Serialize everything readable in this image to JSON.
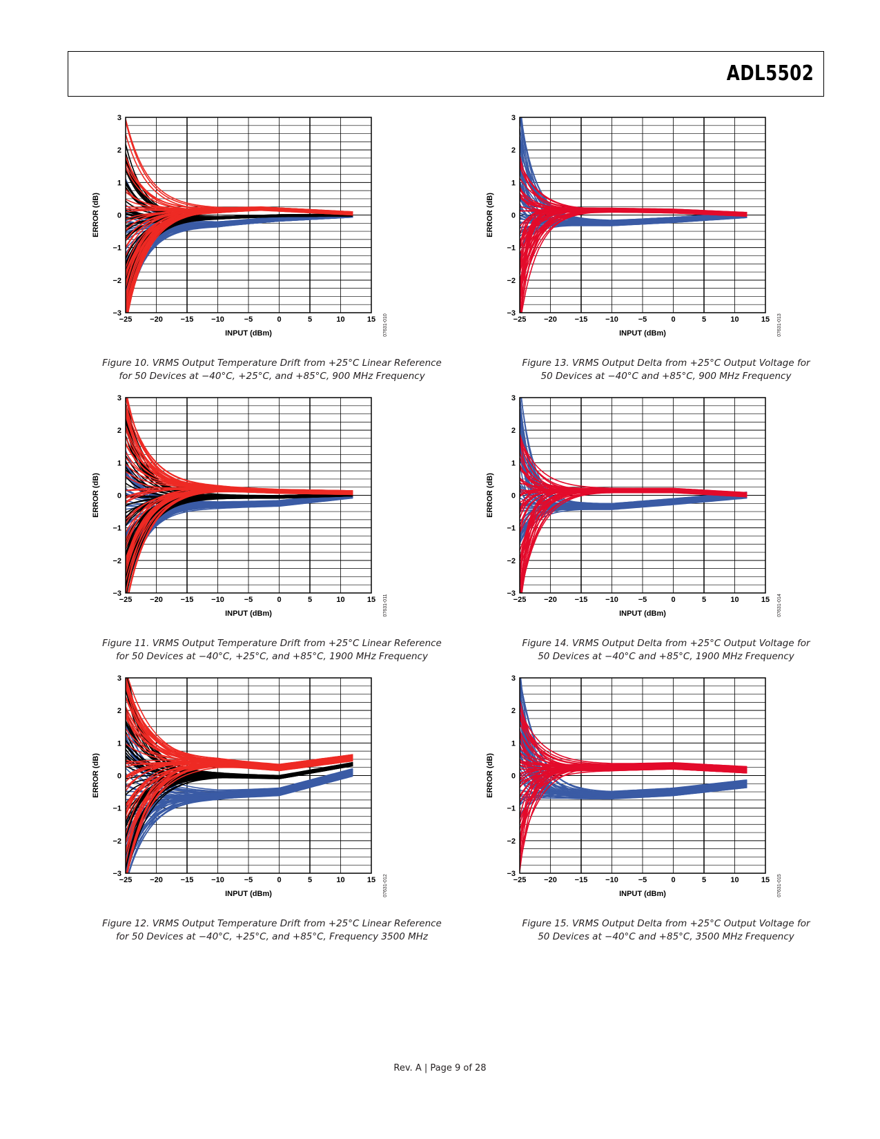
{
  "header": {
    "part_number": "ADL5502"
  },
  "footer": {
    "text": "Rev. A | Page 9 of 28"
  },
  "colors": {
    "minus40": "#3a5ba5",
    "plus25": "#000000",
    "plus85_left": "#ee2a24",
    "plus85_right": "#e30b2b"
  },
  "figures": [
    {
      "caption_line1": "Figure 10. VRMS Output Temperature Drift from +25°C Linear Reference",
      "caption_line2": "for 50 Devices at −40°C, +25°C, and +85°C, 900 MHz Frequency",
      "code": "07631-010",
      "chart_data": {
        "type": "line",
        "xlabel": "INPUT (dBm)",
        "ylabel": "ERROR (dB)",
        "xlim": [
          -25,
          15
        ],
        "ylim": [
          -3,
          3
        ],
        "xticks": [
          "−25",
          "−20",
          "−15",
          "−10",
          "−5",
          "0",
          "5",
          "10",
          "15"
        ],
        "yticks": [
          "−3",
          "−2",
          "−1",
          "0",
          "1",
          "2",
          "3"
        ],
        "series": [
          {
            "temp": "−40°C",
            "color": "#3a5ba5",
            "settle_x": [
              -15,
              -14
            ],
            "tail_x": [
              -10,
              0,
              12
            ],
            "tail_y": [
              -0.28,
              -0.12,
              0.0
            ],
            "start_range": [
              -3.4,
              1.2
            ],
            "band": 0.07
          },
          {
            "temp": "+25°C",
            "color": "#000000",
            "settle_x": [
              -16,
              -14
            ],
            "tail_x": [
              -10,
              0,
              12
            ],
            "tail_y": [
              -0.08,
              -0.02,
              0.0
            ],
            "start_range": [
              -3.2,
              2.4
            ],
            "band": 0.03
          },
          {
            "temp": "+85°C",
            "color": "#ee2a24",
            "settle_x": [
              -15,
              -13
            ],
            "tail_x": [
              -10,
              -3,
              12
            ],
            "tail_y": [
              0.15,
              0.2,
              0.05
            ],
            "start_range": [
              -3.5,
              3.0
            ],
            "band": 0.05
          }
        ]
      }
    },
    {
      "caption_line1": "Figure 11. VRMS Output Temperature Drift from +25°C Linear Reference",
      "caption_line2": "for 50 Devices at −40°C, +25°C, and +85°C, 1900 MHz Frequency",
      "code": "07631-011",
      "chart_data": {
        "type": "line",
        "xlabel": "INPUT (dBm)",
        "ylabel": "ERROR (dB)",
        "xlim": [
          -25,
          15
        ],
        "ylim": [
          -3,
          3
        ],
        "xticks": [
          "−25",
          "−20",
          "−15",
          "−10",
          "−5",
          "0",
          "5",
          "10",
          "15"
        ],
        "yticks": [
          "−3",
          "−2",
          "−1",
          "0",
          "1",
          "2",
          "3"
        ],
        "series": [
          {
            "temp": "−40°C",
            "color": "#3a5ba5",
            "settle_x": [
              -15,
              -13
            ],
            "tail_x": [
              -10,
              0,
              12
            ],
            "tail_y": [
              -0.3,
              -0.25,
              0.0
            ],
            "start_range": [
              -3.4,
              1.5
            ],
            "band": 0.09
          },
          {
            "temp": "+25°C",
            "color": "#000000",
            "settle_x": [
              -16,
              -13
            ],
            "tail_x": [
              -10,
              0,
              12
            ],
            "tail_y": [
              -0.05,
              -0.05,
              0.02
            ],
            "start_range": [
              -3.3,
              3.2
            ],
            "band": 0.04
          },
          {
            "temp": "+85°C",
            "color": "#ee2a24",
            "settle_x": [
              -15,
              -12
            ],
            "tail_x": [
              -10,
              0,
              12
            ],
            "tail_y": [
              0.2,
              0.12,
              0.08
            ],
            "start_range": [
              -3.5,
              3.3
            ],
            "band": 0.06
          }
        ]
      }
    },
    {
      "caption_line1": "Figure 12. VRMS Output Temperature Drift from +25°C Linear Reference",
      "caption_line2": "for 50 Devices at −40°C, +25°C, and +85°C, Frequency 3500 MHz",
      "code": "07631-012",
      "chart_data": {
        "type": "line",
        "xlabel": "INPUT (dBm)",
        "ylabel": "ERROR (dB)",
        "xlim": [
          -25,
          15
        ],
        "ylim": [
          -3,
          3
        ],
        "xticks": [
          "−25",
          "−20",
          "−15",
          "−10",
          "−5",
          "0",
          "5",
          "10",
          "15"
        ],
        "yticks": [
          "−3",
          "−2",
          "−1",
          "0",
          "1",
          "2",
          "3"
        ],
        "series": [
          {
            "temp": "−40°C",
            "color": "#3a5ba5",
            "settle_x": [
              -15,
              -12
            ],
            "tail_x": [
              -10,
              0,
              12
            ],
            "tail_y": [
              -0.6,
              -0.5,
              0.1
            ],
            "start_range": [
              -3.4,
              2.0
            ],
            "band": 0.12
          },
          {
            "temp": "+25°C",
            "color": "#000000",
            "settle_x": [
              -16,
              -12
            ],
            "tail_x": [
              -10,
              0,
              12
            ],
            "tail_y": [
              0.0,
              -0.05,
              0.35
            ],
            "start_range": [
              -3.4,
              3.5
            ],
            "band": 0.05
          },
          {
            "temp": "+85°C",
            "color": "#ee2a24",
            "settle_x": [
              -15,
              -11
            ],
            "tail_x": [
              -10,
              0,
              12
            ],
            "tail_y": [
              0.4,
              0.25,
              0.55
            ],
            "start_range": [
              -3.5,
              3.5
            ],
            "band": 0.1
          }
        ]
      }
    },
    {
      "caption_line1": "Figure 13. VRMS Output Delta from +25°C Output Voltage for",
      "caption_line2": "50 Devices at −40°C and +85°C, 900 MHz Frequency",
      "code": "07631-013",
      "chart_data": {
        "type": "line",
        "xlabel": "INPUT (dBm)",
        "ylabel": "ERROR (dB)",
        "xlim": [
          -25,
          15
        ],
        "ylim": [
          -3,
          3
        ],
        "xticks": [
          "−25",
          "−20",
          "−15",
          "−10",
          "−5",
          "0",
          "5",
          "10",
          "15"
        ],
        "yticks": [
          "−3",
          "−2",
          "−1",
          "0",
          "1",
          "2",
          "3"
        ],
        "series": [
          {
            "temp": "−40°C",
            "color": "#3a5ba5",
            "settle_x": [
              -22,
              -15
            ],
            "tail_x": [
              -10,
              0,
              12
            ],
            "tail_y": [
              -0.25,
              -0.15,
              0.0
            ],
            "start_range": [
              -1.5,
              3.5
            ],
            "band": 0.08
          },
          {
            "temp": "+85°C",
            "color": "#e30b2b",
            "settle_x": [
              -22,
              -14
            ],
            "tail_x": [
              -10,
              0,
              12
            ],
            "tail_y": [
              0.15,
              0.12,
              0.02
            ],
            "start_range": [
              -3.5,
              2.0
            ],
            "band": 0.06
          }
        ]
      }
    },
    {
      "caption_line1": "Figure 14. VRMS Output Delta from +25°C Output Voltage for",
      "caption_line2": "50 Devices at −40°C and +85°C, 1900 MHz Frequency",
      "code": "07631-014",
      "chart_data": {
        "type": "line",
        "xlabel": "INPUT (dBm)",
        "ylabel": "ERROR (dB)",
        "xlim": [
          -25,
          15
        ],
        "ylim": [
          -3,
          3
        ],
        "xticks": [
          "−25",
          "−20",
          "−15",
          "−10",
          "−5",
          "0",
          "5",
          "10",
          "15"
        ],
        "yticks": [
          "−3",
          "−2",
          "−1",
          "0",
          "1",
          "2",
          "3"
        ],
        "series": [
          {
            "temp": "−40°C",
            "color": "#3a5ba5",
            "settle_x": [
              -22,
              -15
            ],
            "tail_x": [
              -10,
              0,
              12
            ],
            "tail_y": [
              -0.35,
              -0.2,
              0.0
            ],
            "start_range": [
              -1.5,
              3.5
            ],
            "band": 0.1
          },
          {
            "temp": "+85°C",
            "color": "#e30b2b",
            "settle_x": [
              -22,
              -14
            ],
            "tail_x": [
              -10,
              0,
              12
            ],
            "tail_y": [
              0.15,
              0.15,
              0.02
            ],
            "start_range": [
              -3.5,
              2.0
            ],
            "band": 0.07
          }
        ]
      }
    },
    {
      "caption_line1": "Figure 15. VRMS Output Delta from +25°C Output Voltage for",
      "caption_line2": "50 Devices at −40°C and +85°C, 3500 MHz Frequency",
      "code": "07631-015",
      "chart_data": {
        "type": "line",
        "xlabel": "INPUT (dBm)",
        "ylabel": "ERROR (dB)",
        "xlim": [
          -25,
          15
        ],
        "ylim": [
          -3,
          3
        ],
        "xticks": [
          "−25",
          "−20",
          "−15",
          "−10",
          "−5",
          "0",
          "5",
          "10",
          "15"
        ],
        "yticks": [
          "−3",
          "−2",
          "−1",
          "0",
          "1",
          "2",
          "3"
        ],
        "series": [
          {
            "temp": "−40°C",
            "color": "#3a5ba5",
            "settle_x": [
              -22,
              -14
            ],
            "tail_x": [
              -10,
              0,
              12
            ],
            "tail_y": [
              -0.6,
              -0.5,
              -0.25
            ],
            "start_range": [
              -1.5,
              3.5
            ],
            "band": 0.12
          },
          {
            "temp": "+85°C",
            "color": "#e30b2b",
            "settle_x": [
              -22,
              -13
            ],
            "tail_x": [
              -10,
              0,
              12
            ],
            "tail_y": [
              0.25,
              0.3,
              0.18
            ],
            "start_range": [
              -3.5,
              2.5
            ],
            "band": 0.1
          }
        ]
      }
    }
  ]
}
